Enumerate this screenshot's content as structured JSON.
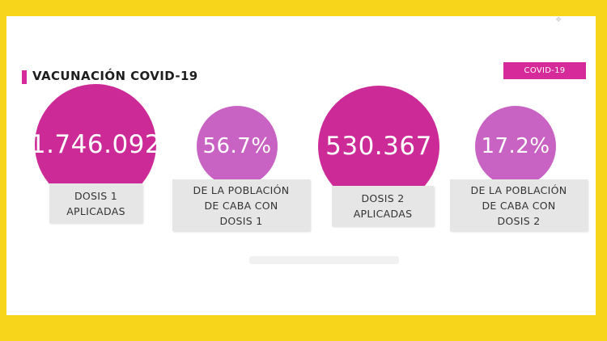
{
  "header": {
    "title": "VACUNACIÓN COVID-19",
    "tag": "COVID-19"
  },
  "stats": [
    {
      "value": "1.746.092",
      "label": "DOSIS 1\nAPLICADAS"
    },
    {
      "value": "56.7%",
      "label": "DE LA POBLACIÓN\nDE CABA CON\nDOSIS 1"
    },
    {
      "value": "530.367",
      "label": "DOSIS 2\nAPLICADAS"
    },
    {
      "value": "17.2%",
      "label": "DE LA POBLACIÓN\nDE CABA CON\nDOSIS 2"
    }
  ],
  "colors": {
    "frame": "#f7d51a",
    "accent": "#d6299a",
    "bubble_large": "#cc2b97",
    "bubble_small": "#c963c3",
    "label_bg": "#e6e6e6"
  }
}
